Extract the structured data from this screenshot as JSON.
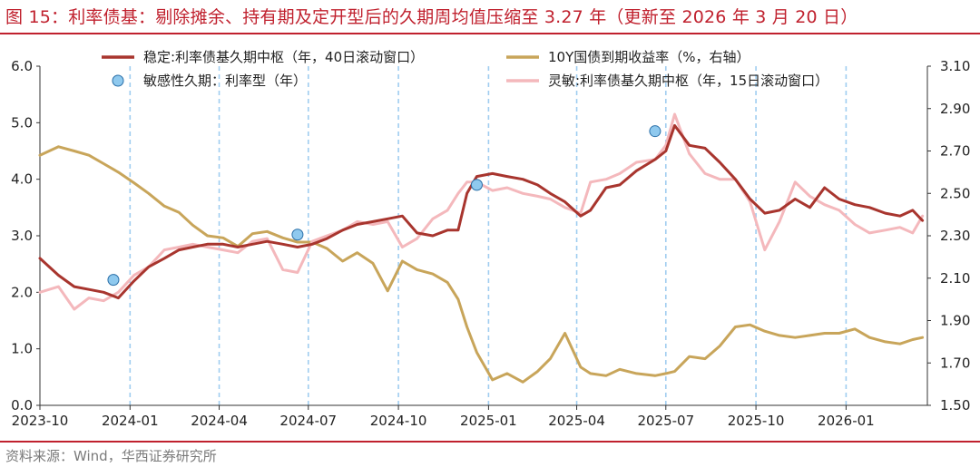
{
  "header": {
    "title": "图 15：利率债基：剔除摊余、持有期及定开型后的久期周均值压缩至 3.27 年（更新至 2026 年 3 月 20 日）"
  },
  "footer": {
    "source": "资料来源：Wind，华西证券研究所"
  },
  "chart_data": {
    "type": "line",
    "x_axis": {
      "type": "date",
      "range": [
        "2023-10-01",
        "2026-03-25"
      ],
      "ticks": [
        "2023-10",
        "2024-01",
        "2024-04",
        "2024-07",
        "2024-10",
        "2025-01",
        "2025-04",
        "2025-07",
        "2025-10",
        "2026-01"
      ],
      "tick_dates": [
        "2023-10-01",
        "2024-01-01",
        "2024-04-01",
        "2024-07-01",
        "2024-10-01",
        "2025-01-01",
        "2025-04-01",
        "2025-07-01",
        "2025-10-01",
        "2026-01-01"
      ],
      "vertical_reference_lines": [
        "2024-01-01",
        "2024-04-01",
        "2024-07-01",
        "2024-10-01",
        "2025-01-01",
        "2025-04-01",
        "2025-07-01",
        "2025-10-01",
        "2026-01-01"
      ]
    },
    "y_left": {
      "range": [
        0,
        6
      ],
      "ticks": [
        "0.0",
        "1.0",
        "2.0",
        "3.0",
        "4.0",
        "5.0",
        "6.0"
      ]
    },
    "y_right": {
      "range": [
        1.5,
        3.1
      ],
      "ticks": [
        "1.50",
        "1.70",
        "1.90",
        "2.10",
        "2.30",
        "2.50",
        "2.70",
        "2.90",
        "3.10"
      ]
    },
    "grid": false,
    "legend_position": "top",
    "series": [
      {
        "name": "稳定:利率债基久期中枢（年，40日滚动窗口）",
        "kind": "line",
        "axis": "left",
        "color": "#a8352e",
        "points": [
          [
            "2023-10-01",
            2.6
          ],
          [
            "2023-10-20",
            2.3
          ],
          [
            "2023-11-05",
            2.1
          ],
          [
            "2023-11-20",
            2.05
          ],
          [
            "2023-12-05",
            2.0
          ],
          [
            "2023-12-20",
            1.9
          ],
          [
            "2024-01-05",
            2.2
          ],
          [
            "2024-01-20",
            2.45
          ],
          [
            "2024-02-05",
            2.6
          ],
          [
            "2024-02-20",
            2.75
          ],
          [
            "2024-03-05",
            2.8
          ],
          [
            "2024-03-20",
            2.85
          ],
          [
            "2024-04-05",
            2.85
          ],
          [
            "2024-04-20",
            2.8
          ],
          [
            "2024-05-05",
            2.85
          ],
          [
            "2024-05-20",
            2.9
          ],
          [
            "2024-06-05",
            2.85
          ],
          [
            "2024-06-20",
            2.8
          ],
          [
            "2024-07-05",
            2.85
          ],
          [
            "2024-07-20",
            2.95
          ],
          [
            "2024-08-05",
            3.1
          ],
          [
            "2024-08-20",
            3.2
          ],
          [
            "2024-09-05",
            3.25
          ],
          [
            "2024-09-20",
            3.3
          ],
          [
            "2024-10-05",
            3.35
          ],
          [
            "2024-10-20",
            3.05
          ],
          [
            "2024-11-05",
            3.0
          ],
          [
            "2024-11-20",
            3.1
          ],
          [
            "2024-12-01",
            3.1
          ],
          [
            "2024-12-10",
            3.75
          ],
          [
            "2024-12-20",
            4.05
          ],
          [
            "2025-01-05",
            4.1
          ],
          [
            "2025-01-20",
            4.05
          ],
          [
            "2025-02-05",
            4.0
          ],
          [
            "2025-02-20",
            3.9
          ],
          [
            "2025-03-05",
            3.75
          ],
          [
            "2025-03-20",
            3.6
          ],
          [
            "2025-04-05",
            3.35
          ],
          [
            "2025-04-15",
            3.45
          ],
          [
            "2025-05-01",
            3.85
          ],
          [
            "2025-05-15",
            3.9
          ],
          [
            "2025-06-01",
            4.15
          ],
          [
            "2025-06-20",
            4.35
          ],
          [
            "2025-07-01",
            4.5
          ],
          [
            "2025-07-10",
            4.95
          ],
          [
            "2025-07-25",
            4.6
          ],
          [
            "2025-08-10",
            4.55
          ],
          [
            "2025-08-25",
            4.3
          ],
          [
            "2025-09-10",
            4.0
          ],
          [
            "2025-09-25",
            3.65
          ],
          [
            "2025-10-10",
            3.4
          ],
          [
            "2025-10-25",
            3.45
          ],
          [
            "2025-11-10",
            3.65
          ],
          [
            "2025-11-25",
            3.5
          ],
          [
            "2025-12-10",
            3.85
          ],
          [
            "2025-12-25",
            3.65
          ],
          [
            "2026-01-10",
            3.55
          ],
          [
            "2026-01-25",
            3.5
          ],
          [
            "2026-02-10",
            3.4
          ],
          [
            "2026-02-25",
            3.35
          ],
          [
            "2026-03-10",
            3.45
          ],
          [
            "2026-03-20",
            3.27
          ]
        ]
      },
      {
        "name": "10Y国债到期收益率（%，右轴）",
        "kind": "line",
        "axis": "right",
        "color": "#c8a55a",
        "points": [
          [
            "2023-10-01",
            2.68
          ],
          [
            "2023-10-20",
            2.72
          ],
          [
            "2023-11-05",
            2.7
          ],
          [
            "2023-11-20",
            2.68
          ],
          [
            "2023-12-05",
            2.64
          ],
          [
            "2023-12-20",
            2.6
          ],
          [
            "2024-01-05",
            2.55
          ],
          [
            "2024-01-20",
            2.5
          ],
          [
            "2024-02-05",
            2.44
          ],
          [
            "2024-02-20",
            2.41
          ],
          [
            "2024-03-05",
            2.35
          ],
          [
            "2024-03-20",
            2.3
          ],
          [
            "2024-04-05",
            2.29
          ],
          [
            "2024-04-20",
            2.25
          ],
          [
            "2024-05-05",
            2.31
          ],
          [
            "2024-05-20",
            2.32
          ],
          [
            "2024-06-05",
            2.29
          ],
          [
            "2024-06-20",
            2.27
          ],
          [
            "2024-07-05",
            2.27
          ],
          [
            "2024-07-20",
            2.24
          ],
          [
            "2024-08-05",
            2.18
          ],
          [
            "2024-08-20",
            2.22
          ],
          [
            "2024-09-05",
            2.17
          ],
          [
            "2024-09-20",
            2.04
          ],
          [
            "2024-10-05",
            2.18
          ],
          [
            "2024-10-20",
            2.14
          ],
          [
            "2024-11-05",
            2.12
          ],
          [
            "2024-11-20",
            2.08
          ],
          [
            "2024-12-01",
            2.0
          ],
          [
            "2024-12-10",
            1.87
          ],
          [
            "2024-12-20",
            1.75
          ],
          [
            "2025-01-05",
            1.62
          ],
          [
            "2025-01-20",
            1.65
          ],
          [
            "2025-02-05",
            1.61
          ],
          [
            "2025-02-20",
            1.66
          ],
          [
            "2025-03-05",
            1.72
          ],
          [
            "2025-03-20",
            1.84
          ],
          [
            "2025-04-05",
            1.68
          ],
          [
            "2025-04-15",
            1.65
          ],
          [
            "2025-05-01",
            1.64
          ],
          [
            "2025-05-15",
            1.67
          ],
          [
            "2025-06-01",
            1.65
          ],
          [
            "2025-06-20",
            1.64
          ],
          [
            "2025-07-01",
            1.65
          ],
          [
            "2025-07-10",
            1.66
          ],
          [
            "2025-07-25",
            1.73
          ],
          [
            "2025-08-10",
            1.72
          ],
          [
            "2025-08-25",
            1.78
          ],
          [
            "2025-09-10",
            1.87
          ],
          [
            "2025-09-25",
            1.88
          ],
          [
            "2025-10-10",
            1.85
          ],
          [
            "2025-10-25",
            1.83
          ],
          [
            "2025-11-10",
            1.82
          ],
          [
            "2025-11-25",
            1.83
          ],
          [
            "2025-12-10",
            1.84
          ],
          [
            "2025-12-25",
            1.84
          ],
          [
            "2026-01-10",
            1.86
          ],
          [
            "2026-01-25",
            1.82
          ],
          [
            "2026-02-10",
            1.8
          ],
          [
            "2026-02-25",
            1.79
          ],
          [
            "2026-03-10",
            1.81
          ],
          [
            "2026-03-20",
            1.82
          ]
        ]
      },
      {
        "name": "灵敏:利率债基久期中枢（年，15日滚动窗口）",
        "kind": "line",
        "axis": "left",
        "color": "#f4b8bc",
        "points": [
          [
            "2023-10-01",
            2.0
          ],
          [
            "2023-10-20",
            2.1
          ],
          [
            "2023-11-05",
            1.7
          ],
          [
            "2023-11-20",
            1.9
          ],
          [
            "2023-12-05",
            1.85
          ],
          [
            "2023-12-20",
            2.0
          ],
          [
            "2024-01-05",
            2.3
          ],
          [
            "2024-01-20",
            2.45
          ],
          [
            "2024-02-05",
            2.75
          ],
          [
            "2024-02-20",
            2.8
          ],
          [
            "2024-03-05",
            2.85
          ],
          [
            "2024-03-20",
            2.8
          ],
          [
            "2024-04-05",
            2.75
          ],
          [
            "2024-04-20",
            2.7
          ],
          [
            "2024-05-05",
            2.9
          ],
          [
            "2024-05-20",
            2.95
          ],
          [
            "2024-06-05",
            2.4
          ],
          [
            "2024-06-20",
            2.35
          ],
          [
            "2024-07-05",
            2.9
          ],
          [
            "2024-07-20",
            3.0
          ],
          [
            "2024-08-05",
            3.1
          ],
          [
            "2024-08-20",
            3.25
          ],
          [
            "2024-09-05",
            3.2
          ],
          [
            "2024-09-20",
            3.25
          ],
          [
            "2024-10-05",
            2.8
          ],
          [
            "2024-10-20",
            2.95
          ],
          [
            "2024-11-05",
            3.3
          ],
          [
            "2024-11-20",
            3.45
          ],
          [
            "2024-12-01",
            3.75
          ],
          [
            "2024-12-10",
            3.95
          ],
          [
            "2024-12-20",
            3.95
          ],
          [
            "2025-01-05",
            3.8
          ],
          [
            "2025-01-20",
            3.85
          ],
          [
            "2025-02-05",
            3.75
          ],
          [
            "2025-02-20",
            3.7
          ],
          [
            "2025-03-05",
            3.65
          ],
          [
            "2025-03-20",
            3.5
          ],
          [
            "2025-04-05",
            3.4
          ],
          [
            "2025-04-15",
            3.95
          ],
          [
            "2025-05-01",
            4.0
          ],
          [
            "2025-05-15",
            4.1
          ],
          [
            "2025-06-01",
            4.3
          ],
          [
            "2025-06-20",
            4.35
          ],
          [
            "2025-07-01",
            4.6
          ],
          [
            "2025-07-10",
            5.15
          ],
          [
            "2025-07-25",
            4.45
          ],
          [
            "2025-08-10",
            4.1
          ],
          [
            "2025-08-25",
            4.0
          ],
          [
            "2025-09-10",
            4.0
          ],
          [
            "2025-09-25",
            3.6
          ],
          [
            "2025-10-10",
            2.75
          ],
          [
            "2025-10-25",
            3.25
          ],
          [
            "2025-11-10",
            3.95
          ],
          [
            "2025-11-25",
            3.7
          ],
          [
            "2025-12-10",
            3.55
          ],
          [
            "2025-12-25",
            3.45
          ],
          [
            "2026-01-10",
            3.2
          ],
          [
            "2026-01-25",
            3.05
          ],
          [
            "2026-02-10",
            3.1
          ],
          [
            "2026-02-25",
            3.15
          ],
          [
            "2026-03-10",
            3.05
          ],
          [
            "2026-03-20",
            3.35
          ]
        ]
      },
      {
        "name": "敏感性久期：利率型（年）",
        "kind": "scatter",
        "axis": "left",
        "color": "#8fc9ee",
        "points": [
          [
            "2023-12-15",
            2.22
          ],
          [
            "2024-06-20",
            3.02
          ],
          [
            "2024-12-20",
            3.9
          ],
          [
            "2025-06-20",
            4.85
          ]
        ]
      }
    ]
  }
}
